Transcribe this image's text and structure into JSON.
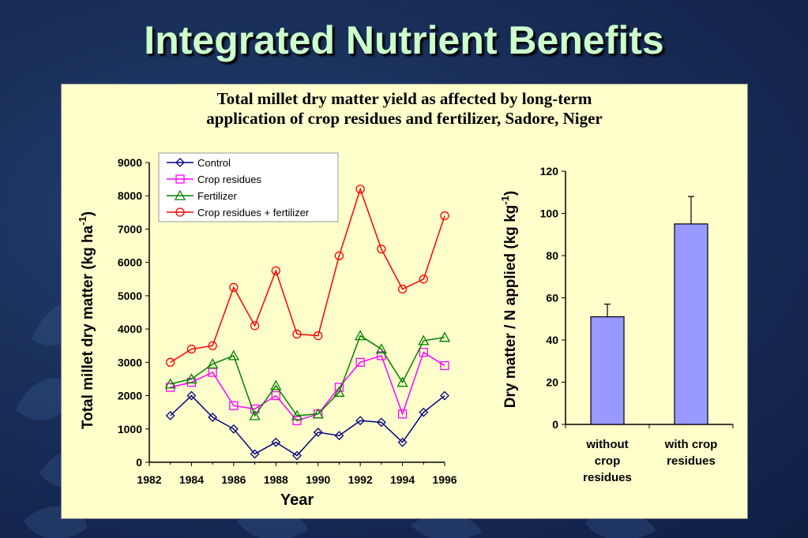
{
  "slide": {
    "title": "Integrated Nutrient Benefits",
    "heading_line1": "Total millet dry matter yield as affected by long-term",
    "heading_line2": "application of crop residues and fertilizer, Sadore, Niger"
  },
  "colors": {
    "background": "#172b55",
    "title": "#ccffcc",
    "panel": "#ffffcc",
    "bar_fill": "#9999ff"
  },
  "chart_data": [
    {
      "type": "line",
      "xlabel": "Year",
      "ylabel": "Total millet dry matter  (kg ha-1)",
      "xlim": [
        1982,
        1996
      ],
      "ylim": [
        0,
        9000
      ],
      "xticks": [
        1982,
        1984,
        1986,
        1988,
        1990,
        1992,
        1994,
        1996
      ],
      "yticks": [
        0,
        1000,
        2000,
        3000,
        4000,
        5000,
        6000,
        7000,
        8000,
        9000
      ],
      "x": [
        1983,
        1984,
        1985,
        1986,
        1987,
        1988,
        1989,
        1990,
        1991,
        1992,
        1993,
        1994,
        1995,
        1996
      ],
      "legend_position": "top-left",
      "series": [
        {
          "name": "Control",
          "color": "#000080",
          "marker": "diamond",
          "values": [
            1400,
            2000,
            1350,
            1000,
            250,
            600,
            200,
            900,
            800,
            1250,
            1200,
            600,
            1500,
            2000
          ]
        },
        {
          "name": "Crop residues",
          "color": "#ff00ff",
          "marker": "square",
          "values": [
            2250,
            2400,
            2700,
            1700,
            1600,
            2000,
            1250,
            1450,
            2250,
            3000,
            3200,
            1450,
            3300,
            2900
          ]
        },
        {
          "name": "Fertilizer",
          "color": "#008000",
          "marker": "triangle",
          "values": [
            2350,
            2500,
            2950,
            3200,
            1400,
            2300,
            1400,
            1450,
            2100,
            3800,
            3400,
            2400,
            3650,
            3750
          ]
        },
        {
          "name": "Crop residues + fertilizer",
          "color": "#ff0000",
          "marker": "circle",
          "values": [
            3000,
            3400,
            3500,
            5250,
            4100,
            5750,
            3850,
            3800,
            6200,
            8200,
            6400,
            5200,
            5500,
            7400
          ]
        }
      ]
    },
    {
      "type": "bar",
      "ylabel": "Dry matter / N applied (kg kg-1)",
      "ylim": [
        0,
        120
      ],
      "yticks": [
        0,
        20,
        40,
        60,
        80,
        100,
        120
      ],
      "categories": [
        "without crop residues",
        "with crop residues"
      ],
      "category_lines": [
        [
          "without",
          "crop",
          "residues"
        ],
        [
          "with crop",
          "residues"
        ]
      ],
      "values": [
        51,
        95
      ],
      "error_upper": [
        57,
        108
      ]
    }
  ]
}
